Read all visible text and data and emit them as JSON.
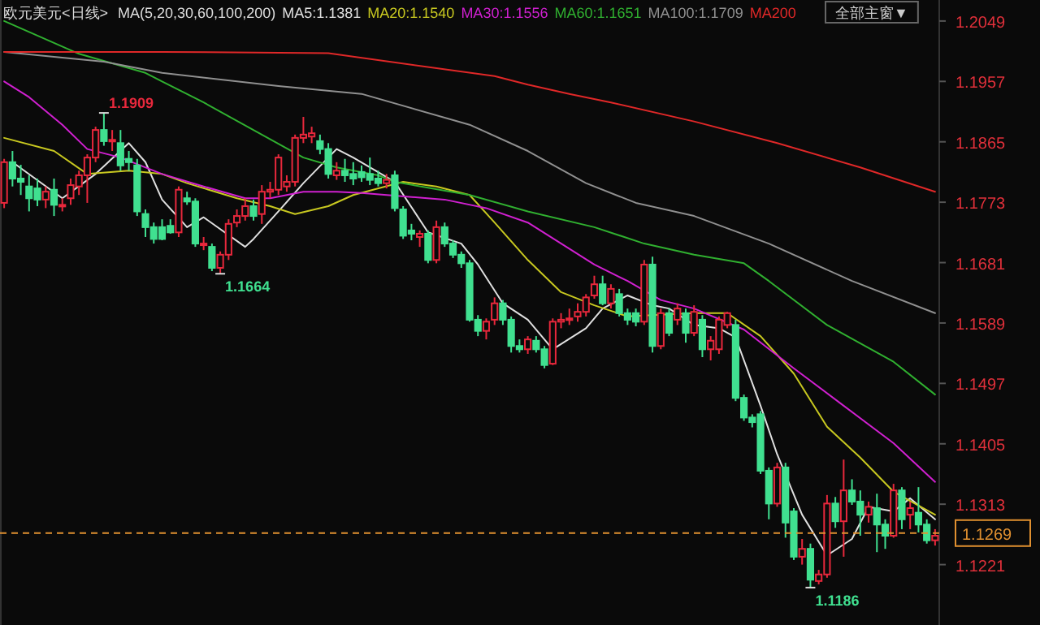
{
  "chart_data": {
    "type": "candlestick",
    "title": "欧元美元<日线>",
    "subtitle": "MA(5,20,30,60,100,200)",
    "categories": [
      null,
      null,
      null,
      null,
      null,
      null,
      null,
      null,
      null,
      null,
      null,
      null,
      null,
      null,
      null,
      null,
      null,
      null,
      null,
      null,
      null,
      null,
      null,
      null,
      null,
      null,
      null,
      null,
      null,
      null,
      null,
      null,
      null,
      null,
      null,
      null,
      null,
      null,
      null,
      null,
      null,
      null,
      null,
      null,
      null,
      null,
      null,
      null,
      null,
      null,
      null,
      null,
      null,
      null,
      null,
      null,
      null,
      null,
      null,
      null,
      null,
      null,
      null,
      null,
      null,
      null,
      null,
      null,
      null,
      null,
      null,
      null,
      null,
      null,
      null,
      null,
      null,
      null,
      null,
      null,
      null,
      null,
      null,
      null,
      null,
      null,
      null,
      null,
      null,
      null,
      null,
      null,
      null,
      null,
      null,
      null,
      null,
      null,
      null,
      null,
      null,
      null,
      null,
      null,
      null,
      null,
      null,
      null,
      null,
      null,
      null,
      null,
      null
    ],
    "ohlc": [
      [
        1.1772,
        1.1839,
        1.1764,
        1.1834
      ],
      [
        1.1834,
        1.1851,
        1.1797,
        1.1809
      ],
      [
        1.1809,
        1.183,
        1.1784,
        1.1804
      ],
      [
        1.1797,
        1.1814,
        1.1759,
        1.1779
      ],
      [
        1.1794,
        1.1809,
        1.1767,
        1.1777
      ],
      [
        1.1777,
        1.1797,
        1.1764,
        1.1789
      ],
      [
        1.1792,
        1.1809,
        1.1752,
        1.1769
      ],
      [
        1.1767,
        1.1779,
        1.1759,
        1.1769
      ],
      [
        1.1779,
        1.1809,
        1.1769,
        1.1799
      ],
      [
        1.1797,
        1.1821,
        1.1784,
        1.1814
      ],
      [
        1.1814,
        1.1846,
        1.1772,
        1.1841
      ],
      [
        1.1841,
        1.1888,
        1.1834,
        1.1883
      ],
      [
        1.1883,
        1.1909,
        1.1859,
        1.1866
      ],
      [
        1.1866,
        1.1883,
        1.1851,
        1.1868
      ],
      [
        1.1863,
        1.1883,
        1.1821,
        1.1829
      ],
      [
        1.1839,
        1.1851,
        1.1821,
        1.1834
      ],
      [
        1.1829,
        1.1839,
        1.1752,
        1.1759
      ],
      [
        1.1755,
        1.1762,
        1.172,
        1.1735
      ],
      [
        1.1735,
        1.1742,
        1.171,
        1.1717
      ],
      [
        1.1735,
        1.1747,
        1.1715,
        1.1717
      ],
      [
        1.1737,
        1.1747,
        1.1725,
        1.1727
      ],
      [
        1.1727,
        1.1797,
        1.172,
        1.1792
      ],
      [
        1.1779,
        1.1789,
        1.1769,
        1.1774
      ],
      [
        1.1774,
        1.1779,
        1.1705,
        1.171
      ],
      [
        1.1708,
        1.172,
        1.17,
        1.171
      ],
      [
        1.1705,
        1.171,
        1.1668,
        1.1673
      ],
      [
        1.1673,
        1.1698,
        1.1664,
        1.1693
      ],
      [
        1.1693,
        1.1747,
        1.1685,
        1.174
      ],
      [
        1.1742,
        1.1762,
        1.1735,
        1.1752
      ],
      [
        1.1752,
        1.1779,
        1.1745,
        1.1767
      ],
      [
        1.1767,
        1.1777,
        1.1745,
        1.1752
      ],
      [
        1.1755,
        1.1799,
        1.174,
        1.1789
      ],
      [
        1.1789,
        1.1804,
        1.1779,
        1.1792
      ],
      [
        1.1792,
        1.1846,
        1.1784,
        1.1841
      ],
      [
        1.1797,
        1.1814,
        1.1789,
        1.1804
      ],
      [
        1.1804,
        1.1876,
        1.1797,
        1.1871
      ],
      [
        1.1871,
        1.1903,
        1.1863,
        1.1876
      ],
      [
        1.1873,
        1.1888,
        1.1863,
        1.1878
      ],
      [
        1.1866,
        1.1876,
        1.1846,
        1.1854
      ],
      [
        1.1854,
        1.1863,
        1.1809,
        1.1816
      ],
      [
        1.1814,
        1.1834,
        1.1807,
        1.1821
      ],
      [
        1.1821,
        1.1839,
        1.1804,
        1.1814
      ],
      [
        1.1816,
        1.1834,
        1.1799,
        1.1809
      ],
      [
        1.1819,
        1.1829,
        1.1804,
        1.1811
      ],
      [
        1.1816,
        1.1841,
        1.1799,
        1.1807
      ],
      [
        1.1809,
        1.1821,
        1.1797,
        1.1802
      ],
      [
        1.1802,
        1.1816,
        1.1794,
        1.1807
      ],
      [
        1.1814,
        1.1821,
        1.1759,
        1.1764
      ],
      [
        1.1762,
        1.1767,
        1.1717,
        1.1722
      ],
      [
        1.173,
        1.174,
        1.1715,
        1.1725
      ],
      [
        1.172,
        1.173,
        1.1705,
        1.1725
      ],
      [
        1.1725,
        1.173,
        1.168,
        1.1685
      ],
      [
        1.1685,
        1.1745,
        1.168,
        1.1735
      ],
      [
        1.1735,
        1.1742,
        1.1705,
        1.171
      ],
      [
        1.171,
        1.1715,
        1.1688,
        1.1693
      ],
      [
        1.1693,
        1.1698,
        1.1673,
        1.168
      ],
      [
        1.168,
        1.1685,
        1.1591,
        1.1594
      ],
      [
        1.1594,
        1.1601,
        1.1569,
        1.1577
      ],
      [
        1.1577,
        1.1596,
        1.1564,
        1.1591
      ],
      [
        1.1594,
        1.1628,
        1.1586,
        1.1619
      ],
      [
        1.1619,
        1.1624,
        1.1586,
        1.1594
      ],
      [
        1.1594,
        1.1599,
        1.1544,
        1.1554
      ],
      [
        1.1554,
        1.1564,
        1.1544,
        1.1549
      ],
      [
        1.1549,
        1.1569,
        1.1542,
        1.1564
      ],
      [
        1.1562,
        1.1569,
        1.1544,
        1.1549
      ],
      [
        1.1549,
        1.1554,
        1.152,
        1.1525
      ],
      [
        1.1527,
        1.1596,
        1.1525,
        1.1591
      ],
      [
        1.1591,
        1.1604,
        1.1581,
        1.1594
      ],
      [
        1.1594,
        1.1611,
        1.1586,
        1.1596
      ],
      [
        1.1599,
        1.1619,
        1.1591,
        1.1606
      ],
      [
        1.1606,
        1.1633,
        1.1599,
        1.1628
      ],
      [
        1.1631,
        1.1661,
        1.1626,
        1.1648
      ],
      [
        1.1648,
        1.1661,
        1.1616,
        1.1619
      ],
      [
        1.1619,
        1.1648,
        1.1611,
        1.1641
      ],
      [
        1.1633,
        1.1641,
        1.1599,
        1.1604
      ],
      [
        1.1604,
        1.1611,
        1.1586,
        1.1594
      ],
      [
        1.1604,
        1.1611,
        1.1584,
        1.1591
      ],
      [
        1.1591,
        1.1685,
        1.1586,
        1.1678
      ],
      [
        1.1678,
        1.169,
        1.1544,
        1.1554
      ],
      [
        1.1554,
        1.1611,
        1.1549,
        1.1604
      ],
      [
        1.1604,
        1.1611,
        1.1569,
        1.1574
      ],
      [
        1.1594,
        1.1619,
        1.1586,
        1.1611
      ],
      [
        1.1604,
        1.1611,
        1.1559,
        1.1574
      ],
      [
        1.1574,
        1.1616,
        1.1569,
        1.1606
      ],
      [
        1.1594,
        1.1601,
        1.1537,
        1.1549
      ],
      [
        1.1549,
        1.1569,
        1.1532,
        1.1562
      ],
      [
        1.1549,
        1.1599,
        1.1542,
        1.1594
      ],
      [
        1.1586,
        1.1606,
        1.1581,
        1.1604
      ],
      [
        1.1586,
        1.1594,
        1.147,
        1.1475
      ],
      [
        1.1475,
        1.148,
        1.144,
        1.1445
      ],
      [
        1.1445,
        1.145,
        1.143,
        1.1438
      ],
      [
        1.145,
        1.1455,
        1.1359,
        1.1364
      ],
      [
        1.1364,
        1.1369,
        1.129,
        1.1314
      ],
      [
        1.1314,
        1.1376,
        1.1309,
        1.1369
      ],
      [
        1.1369,
        1.1376,
        1.1262,
        1.1285
      ],
      [
        1.1302,
        1.1307,
        1.1228,
        1.1233
      ],
      [
        1.1233,
        1.126,
        1.1221,
        1.1245
      ],
      [
        1.1245,
        1.1253,
        1.1186,
        1.1198
      ],
      [
        1.1196,
        1.1213,
        1.1191,
        1.1206
      ],
      [
        1.1206,
        1.1327,
        1.1201,
        1.1314
      ],
      [
        1.1314,
        1.1324,
        1.1277,
        1.1287
      ],
      [
        1.1287,
        1.1381,
        1.1233,
        1.1334
      ],
      [
        1.1334,
        1.1351,
        1.1312,
        1.1317
      ],
      [
        1.1317,
        1.1334,
        1.1265,
        1.1297
      ],
      [
        1.1297,
        1.1317,
        1.1285,
        1.1309
      ],
      [
        1.1307,
        1.1329,
        1.124,
        1.1282
      ],
      [
        1.1282,
        1.129,
        1.1245,
        1.1265
      ],
      [
        1.1265,
        1.1344,
        1.1262,
        1.1334
      ],
      [
        1.1334,
        1.1339,
        1.1275,
        1.129
      ],
      [
        1.1297,
        1.1317,
        1.1275,
        1.1307
      ],
      [
        1.13,
        1.1339,
        1.127,
        1.1282
      ],
      [
        1.1282,
        1.129,
        1.1253,
        1.1258
      ],
      [
        1.1258,
        1.1275,
        1.125,
        1.1265
      ]
    ],
    "colors": [
      "#e8283c",
      "#40e090",
      "#40e090",
      "#40e090",
      "#40e090",
      "#e8283c",
      "#40e090",
      "#e8283c",
      "#e8283c",
      "#e8283c",
      "#e8283c",
      "#e8283c",
      "#40e090",
      "#e8283c",
      "#40e090",
      "#40e090",
      "#40e090",
      "#40e090",
      "#40e090",
      "#40e090",
      "#40e090",
      "#e8283c",
      "#40e090",
      "#40e090",
      "#e8283c",
      "#40e090",
      "#e8283c",
      "#e8283c",
      "#e8283c",
      "#e8283c",
      "#40e090",
      "#e8283c",
      "#e8283c",
      "#e8283c",
      "#e8283c",
      "#e8283c",
      "#e8283c",
      "#e8283c",
      "#40e090",
      "#40e090",
      "#e8283c",
      "#40e090",
      "#40e090",
      "#40e090",
      "#40e090",
      "#40e090",
      "#e8283c",
      "#40e090",
      "#40e090",
      "#40e090",
      "#e8283c",
      "#40e090",
      "#e8283c",
      "#40e090",
      "#40e090",
      "#40e090",
      "#40e090",
      "#40e090",
      "#e8283c",
      "#e8283c",
      "#40e090",
      "#40e090",
      "#40e090",
      "#e8283c",
      "#40e090",
      "#40e090",
      "#e8283c",
      "#e8283c",
      "#e8283c",
      "#e8283c",
      "#e8283c",
      "#e8283c",
      "#40e090",
      "#e8283c",
      "#40e090",
      "#40e090",
      "#40e090",
      "#e8283c",
      "#40e090",
      "#e8283c",
      "#40e090",
      "#e8283c",
      "#40e090",
      "#e8283c",
      "#40e090",
      "#e8283c",
      "#e8283c",
      "#e8283c",
      "#40e090",
      "#40e090",
      "#40e090",
      "#40e090",
      "#40e090",
      "#e8283c",
      "#40e090",
      "#40e090",
      "#e8283c",
      "#40e090",
      "#e8283c",
      "#e8283c",
      "#40e090",
      "#e8283c",
      "#40e090",
      "#40e090",
      "#e8283c",
      "#40e090",
      "#40e090",
      "#e8283c",
      "#40e090",
      "#e8283c",
      "#40e090",
      "#40e090",
      "#e8283c"
    ],
    "series": [
      {
        "name": "MA5:1.1381",
        "type": "line",
        "color": "#e0e0e0",
        "values": [
          null,
          1.1834,
          null,
          null,
          null,
          null,
          null,
          1.1779,
          null,
          null,
          null,
          1.1816,
          null,
          null,
          null,
          1.1863,
          null,
          1.1834,
          null,
          1.1777,
          null,
          null,
          1.1735,
          null,
          1.175,
          null,
          null,
          null,
          null,
          1.1705,
          1.1717,
          null,
          null,
          1.1759,
          null,
          null,
          1.1802,
          null,
          null,
          null,
          1.1854,
          null,
          1.1841,
          null,
          null,
          null,
          null,
          1.1804,
          null,
          null,
          null,
          1.1727,
          null,
          null,
          null,
          1.171,
          null,
          1.1678,
          null,
          null,
          1.1619,
          null,
          null,
          1.1594,
          null,
          null,
          1.1549,
          null,
          null,
          null,
          1.1581,
          null,
          1.1611,
          null,
          null,
          1.1631,
          null,
          null,
          1.1616,
          null,
          1.1611,
          null,
          null,
          1.1586,
          null,
          null,
          1.1581,
          null,
          1.1567,
          null,
          null,
          1.1463,
          null,
          1.1389,
          null,
          null,
          1.1297,
          null,
          null,
          1.1235,
          null,
          null,
          1.126,
          null,
          1.1309,
          null,
          null,
          1.1302,
          null,
          1.1322,
          null,
          null,
          1.129
        ]
      },
      {
        "name": "MA20:1.1540",
        "type": "line",
        "color": "#c8c820",
        "values": [
          1.1871,
          null,
          null,
          null,
          null,
          null,
          1.1851,
          null,
          null,
          null,
          1.1816,
          null,
          null,
          null,
          null,
          1.1821,
          null,
          null,
          null,
          1.1816,
          null,
          null,
          1.1802,
          null,
          null,
          null,
          null,
          null,
          1.1779,
          null,
          null,
          null,
          1.1767,
          null,
          null,
          1.1755,
          null,
          null,
          null,
          1.1767,
          null,
          null,
          1.1784,
          null,
          null,
          null,
          null,
          null,
          1.1804,
          null,
          null,
          null,
          1.1797,
          null,
          null,
          null,
          1.1784,
          null,
          null,
          1.1742,
          null,
          null,
          null,
          1.1685,
          null,
          null,
          null,
          1.1636,
          null,
          null,
          null,
          1.1616,
          null,
          null,
          null,
          1.1599,
          null,
          null,
          null,
          null,
          null,
          null,
          null,
          1.1604,
          null,
          null,
          null,
          1.1604,
          null,
          null,
          null,
          1.1569,
          null,
          null,
          null,
          1.1512,
          null,
          null,
          null,
          1.1431,
          null,
          null,
          null,
          1.1384,
          null,
          null,
          null,
          1.1332,
          null,
          null,
          null,
          null,
          1.1297
        ]
      },
      {
        "name": "MA30:1.1556",
        "type": "line",
        "color": "#d020d0",
        "values": [
          1.1957,
          null,
          null,
          1.1933,
          null,
          null,
          null,
          1.1891,
          null,
          null,
          1.1854,
          null,
          null,
          null,
          1.1841,
          null,
          null,
          null,
          null,
          1.1816,
          null,
          null,
          null,
          null,
          1.1797,
          null,
          null,
          null,
          null,
          1.1779,
          null,
          null,
          1.1779,
          null,
          null,
          null,
          1.1789,
          null,
          null,
          null,
          1.1789,
          null,
          null,
          1.1787,
          null,
          null,
          null,
          null,
          null,
          null,
          null,
          null,
          null,
          1.1777,
          null,
          null,
          null,
          null,
          1.1764,
          null,
          null,
          null,
          null,
          1.1742,
          null,
          null,
          null,
          null,
          null,
          null,
          null,
          1.1678,
          null,
          null,
          null,
          1.1653,
          null,
          null,
          null,
          1.1624,
          null,
          null,
          null,
          1.1611,
          null,
          null,
          null,
          null,
          null,
          1.1579,
          null,
          null,
          null,
          null,
          null,
          1.152,
          null,
          null,
          null,
          null,
          null,
          1.1463,
          null,
          null,
          null,
          null,
          null,
          1.1406,
          null,
          null,
          null,
          null,
          1.1347
        ]
      },
      {
        "name": "MA60:1.1651",
        "type": "line",
        "color": "#30b030",
        "values": [
          1.2049,
          null,
          null,
          null,
          null,
          null,
          null,
          null,
          null,
          1.1999,
          null,
          null,
          null,
          null,
          null,
          null,
          null,
          1.197,
          null,
          1.1957,
          null,
          null,
          null,
          null,
          1.1925,
          null,
          null,
          null,
          null,
          null,
          null,
          1.1876,
          null,
          null,
          null,
          null,
          1.1841,
          null,
          null,
          null,
          1.1826,
          null,
          null,
          null,
          null,
          1.1814,
          null,
          1.1804,
          null,
          null,
          null,
          null,
          null,
          null,
          null,
          null,
          1.1784,
          null,
          null,
          null,
          null,
          null,
          null,
          1.1759,
          null,
          null,
          null,
          null,
          null,
          null,
          null,
          1.1735,
          null,
          null,
          null,
          null,
          null,
          1.171,
          null,
          null,
          null,
          null,
          null,
          1.1693,
          null,
          null,
          null,
          null,
          null,
          1.168,
          null,
          null,
          1.1653,
          null,
          null,
          null,
          null,
          null,
          null,
          1.1586,
          null,
          null,
          null,
          null,
          null,
          null,
          null,
          1.153,
          null,
          null,
          null,
          null,
          1.148
        ]
      },
      {
        "name": "MA100:1.1709",
        "type": "line",
        "color": "#909090",
        "values": [
          1.2002,
          null,
          null,
          null,
          null,
          null,
          null,
          null,
          null,
          null,
          null,
          null,
          1.1987,
          null,
          null,
          null,
          null,
          null,
          null,
          1.197,
          null,
          null,
          null,
          null,
          null,
          null,
          null,
          null,
          null,
          null,
          null,
          null,
          null,
          1.195,
          null,
          null,
          null,
          null,
          null,
          null,
          null,
          null,
          null,
          1.1938,
          null,
          null,
          null,
          null,
          null,
          null,
          null,
          null,
          null,
          null,
          null,
          null,
          1.1891,
          null,
          null,
          null,
          null,
          null,
          null,
          1.1851,
          null,
          null,
          null,
          null,
          null,
          null,
          1.1802,
          null,
          null,
          null,
          null,
          null,
          1.1772,
          null,
          null,
          null,
          null,
          null,
          null,
          1.1752,
          null,
          null,
          null,
          null,
          null,
          null,
          null,
          null,
          1.171,
          null,
          null,
          null,
          null,
          null,
          null,
          null,
          null,
          null,
          1.1653,
          null,
          null,
          null,
          null,
          null,
          null,
          null,
          null,
          null,
          1.1604
        ]
      },
      {
        "name": "MA200",
        "type": "line",
        "color": "#e02828",
        "values": [
          1.2002,
          null,
          null,
          null,
          null,
          null,
          null,
          null,
          null,
          null,
          null,
          null,
          null,
          null,
          null,
          null,
          null,
          null,
          null,
          1.2002,
          null,
          null,
          null,
          null,
          null,
          null,
          null,
          null,
          null,
          null,
          null,
          null,
          null,
          null,
          null,
          null,
          null,
          null,
          null,
          1.2,
          null,
          null,
          null,
          null,
          null,
          null,
          null,
          null,
          null,
          null,
          null,
          null,
          null,
          null,
          null,
          null,
          null,
          null,
          null,
          1.1965,
          null,
          null,
          null,
          1.1952,
          null,
          null,
          null,
          null,
          1.1938,
          null,
          null,
          null,
          null,
          1.1925,
          null,
          null,
          null,
          null,
          null,
          null,
          null,
          null,
          null,
          1.1896,
          null,
          null,
          null,
          null,
          null,
          null,
          null,
          null,
          null,
          1.1863,
          null,
          null,
          null,
          null,
          null,
          null,
          null,
          null,
          null,
          1.1826,
          null,
          null,
          null,
          null,
          null,
          null,
          null,
          null,
          1.1789
        ]
      }
    ],
    "ylim": [
      1.1129,
      1.2081
    ],
    "yticks": [
      1.2049,
      1.1957,
      1.1865,
      1.1773,
      1.1681,
      1.1589,
      1.1497,
      1.1405,
      1.1313,
      1.1221
    ],
    "ref_lines": [
      {
        "axis": "y",
        "value": 1.1269,
        "label": "1.1269",
        "color": "#e09030",
        "line_style": "dashed"
      }
    ],
    "annotations": [
      "1.1909",
      "1.1664",
      "1.1186",
      "全部主窗▼"
    ],
    "legend": "top",
    "grid": false,
    "tick_labels": "y"
  }
}
